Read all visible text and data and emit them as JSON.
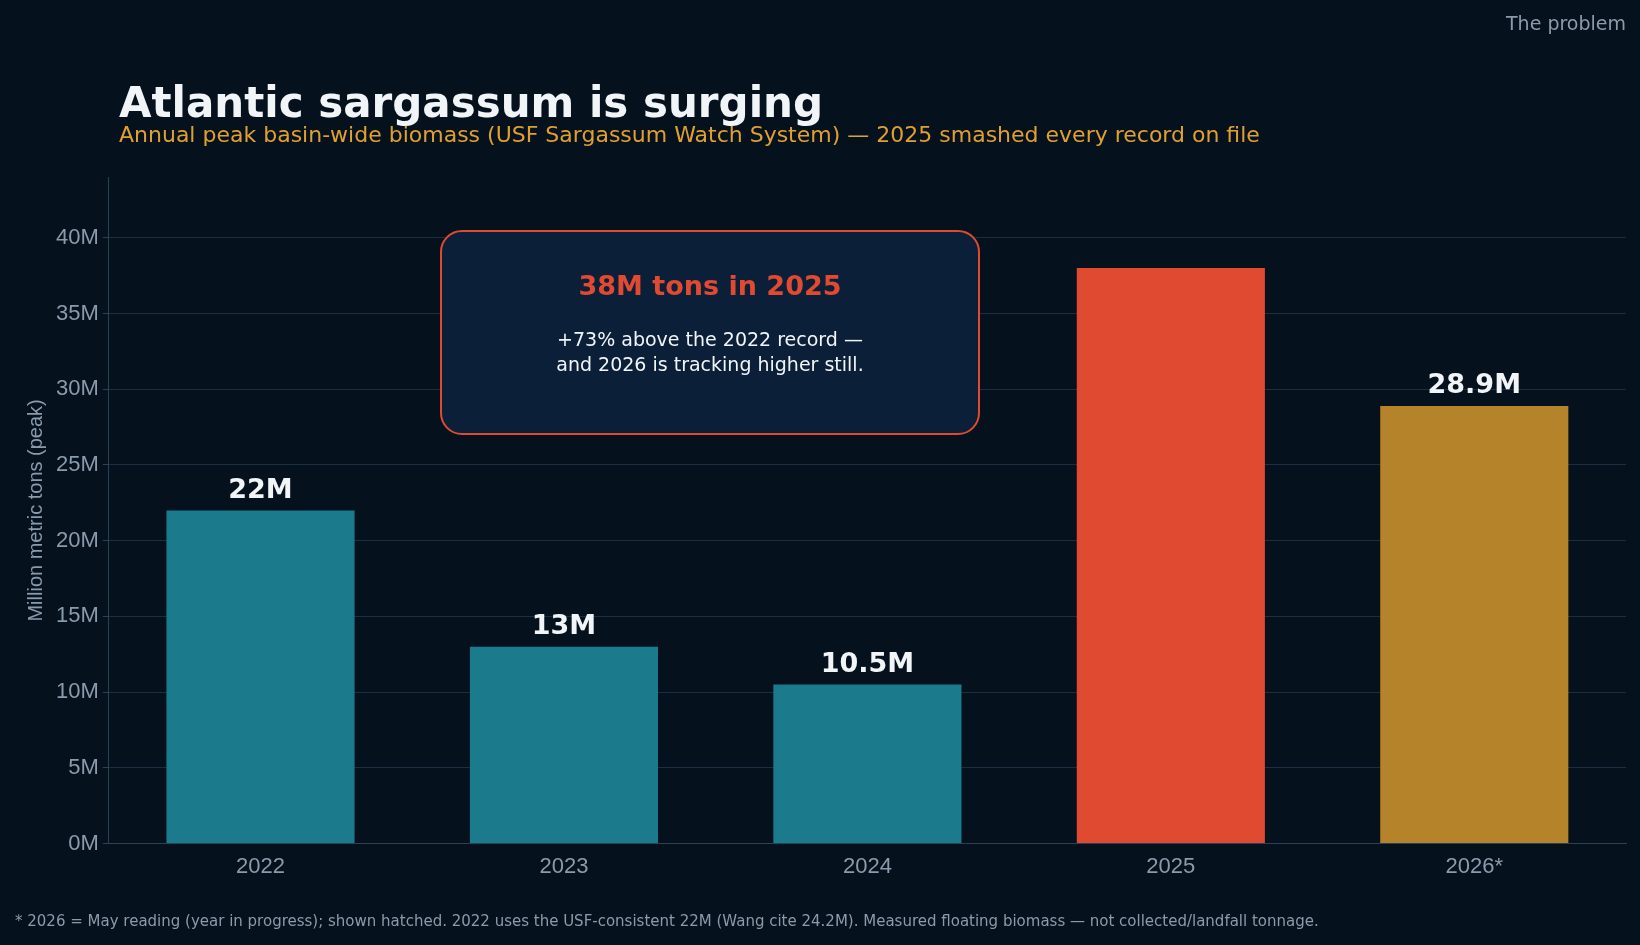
{
  "chart_data": {
    "type": "bar",
    "title": "Atlantic sargassum is surging",
    "subtitle": "Annual peak basin-wide biomass (USF Sargassum Watch System) — 2025 smashed every record on file",
    "ylabel": "Million metric tons (peak)",
    "categories": [
      "2022",
      "2023",
      "2024",
      "2025",
      "2026*"
    ],
    "values": [
      22,
      13,
      10.5,
      38,
      28.9
    ],
    "colors": [
      "#1b7b8c",
      "#1b7b8c",
      "#1b7b8c",
      "#e04a30",
      "#b5832a"
    ],
    "value_labels": [
      "22M",
      "13M",
      "10.5M",
      null,
      "28.9M"
    ],
    "ylim": [
      0,
      44
    ],
    "yticks": [
      {
        "value": 0,
        "label": "0M"
      },
      {
        "value": 5,
        "label": "5M"
      },
      {
        "value": 10,
        "label": "10M"
      },
      {
        "value": 15,
        "label": "15M"
      },
      {
        "value": 20,
        "label": "20M"
      },
      {
        "value": 25,
        "label": "25M"
      },
      {
        "value": 30,
        "label": "30M"
      },
      {
        "value": 35,
        "label": "35M"
      },
      {
        "value": 40,
        "label": "40M"
      }
    ],
    "grid": "y",
    "legend": false,
    "annotations": [
      "The problem",
      "38M tons in 2025",
      "+73% above the 2022 record — and 2026 is tracking higher still.",
      "* 2026 = May reading (year in progress); shown hatched. 2022 uses the USF-consistent 22M (Wang cite 24.2M). Measured floating biomass — not collected/landfall tonnage."
    ]
  }
}
